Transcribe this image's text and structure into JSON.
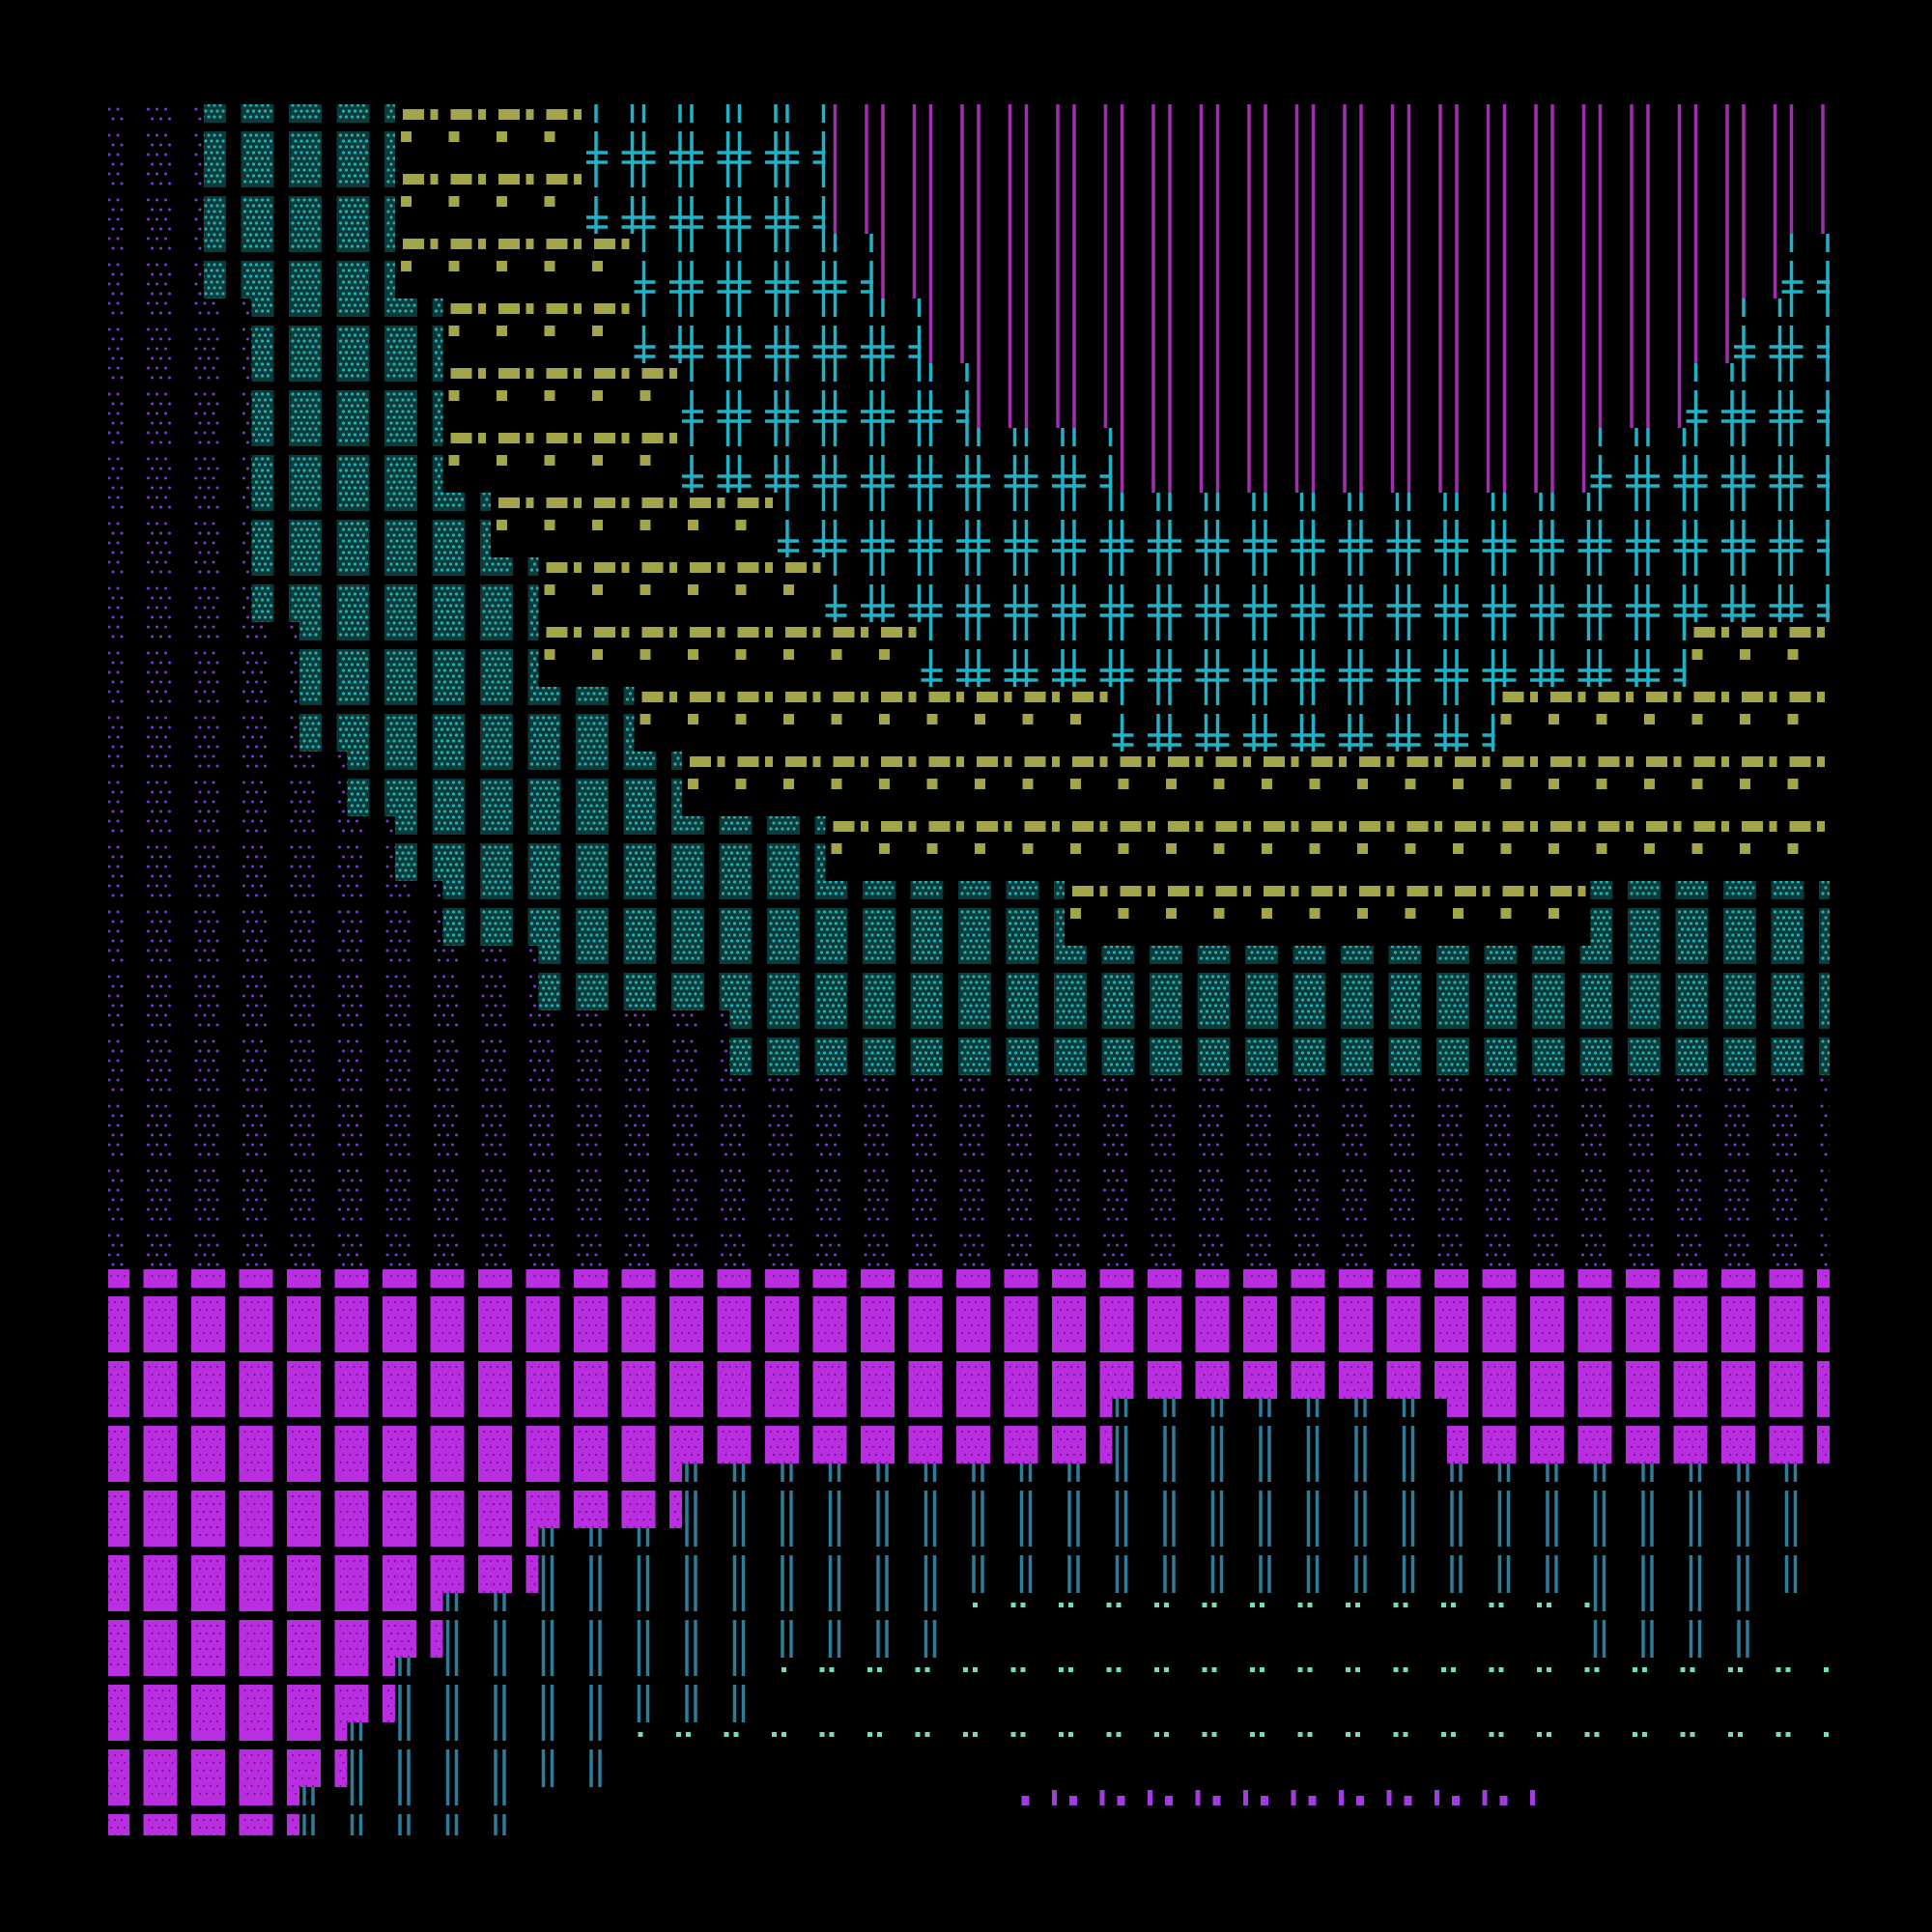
{
  "background": "#000000",
  "grid": {
    "columns": 36,
    "rows": 27
  },
  "patterns": [
    {
      "id": "dot-violet",
      "name": "violet-stipple-tile",
      "color": "#7d3bd6"
    },
    {
      "id": "dot-teal",
      "name": "teal-stipple-tile",
      "color": "#1f9f9f"
    },
    {
      "id": "cross-cyan",
      "name": "cyan-double-cross-glyph",
      "color": "#1fb3c8"
    },
    {
      "id": "dash-olive",
      "name": "olive-dash-row",
      "color": "#a3a54b"
    },
    {
      "id": "bars-purple",
      "name": "purple-double-bar-glyph",
      "color": "#a22db1"
    },
    {
      "id": "block-magenta",
      "name": "magenta-block-tile",
      "color": "#b92ee0"
    },
    {
      "id": "bars-steel",
      "name": "steel-blue-double-bar-glyph",
      "color": "#2c7c9a"
    },
    {
      "id": "dots-mint",
      "name": "mint-dot-pair-row",
      "color": "#6fe0b8"
    },
    {
      "id": "ticks-violet",
      "name": "violet-tick-row",
      "color": "#a23be0"
    }
  ]
}
